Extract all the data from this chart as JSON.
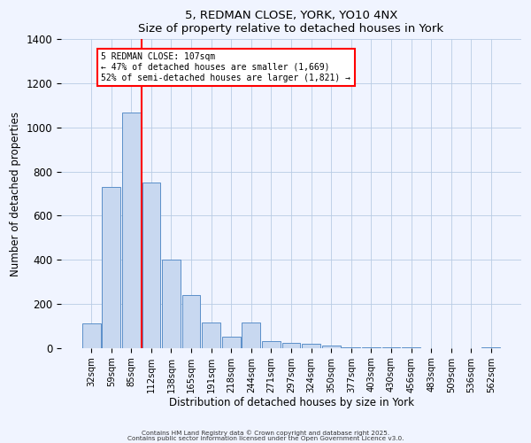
{
  "title_line1": "5, REDMAN CLOSE, YORK, YO10 4NX",
  "title_line2": "Size of property relative to detached houses in York",
  "xlabel": "Distribution of detached houses by size in York",
  "ylabel": "Number of detached properties",
  "bar_labels": [
    "32sqm",
    "59sqm",
    "85sqm",
    "112sqm",
    "138sqm",
    "165sqm",
    "191sqm",
    "218sqm",
    "244sqm",
    "271sqm",
    "297sqm",
    "324sqm",
    "350sqm",
    "377sqm",
    "403sqm",
    "430sqm",
    "456sqm",
    "483sqm",
    "509sqm",
    "536sqm",
    "562sqm"
  ],
  "bar_values": [
    110,
    730,
    1070,
    750,
    400,
    240,
    115,
    50,
    115,
    30,
    25,
    20,
    10,
    2,
    2,
    1,
    1,
    0,
    0,
    0,
    2
  ],
  "bar_color": "#c8d8f0",
  "bar_edge_color": "#5b8fc9",
  "annotation_title": "5 REDMAN CLOSE: 107sqm",
  "annotation_line1": "← 47% of detached houses are smaller (1,669)",
  "annotation_line2": "52% of semi-detached houses are larger (1,821) →",
  "ylim": [
    0,
    1400
  ],
  "yticks": [
    0,
    200,
    400,
    600,
    800,
    1000,
    1200,
    1400
  ],
  "footnote1": "Contains HM Land Registry data © Crown copyright and database right 2025.",
  "footnote2": "Contains public sector information licensed under the Open Government Licence v3.0.",
  "bg_color": "#f0f4ff",
  "grid_color": "#b8cce4"
}
